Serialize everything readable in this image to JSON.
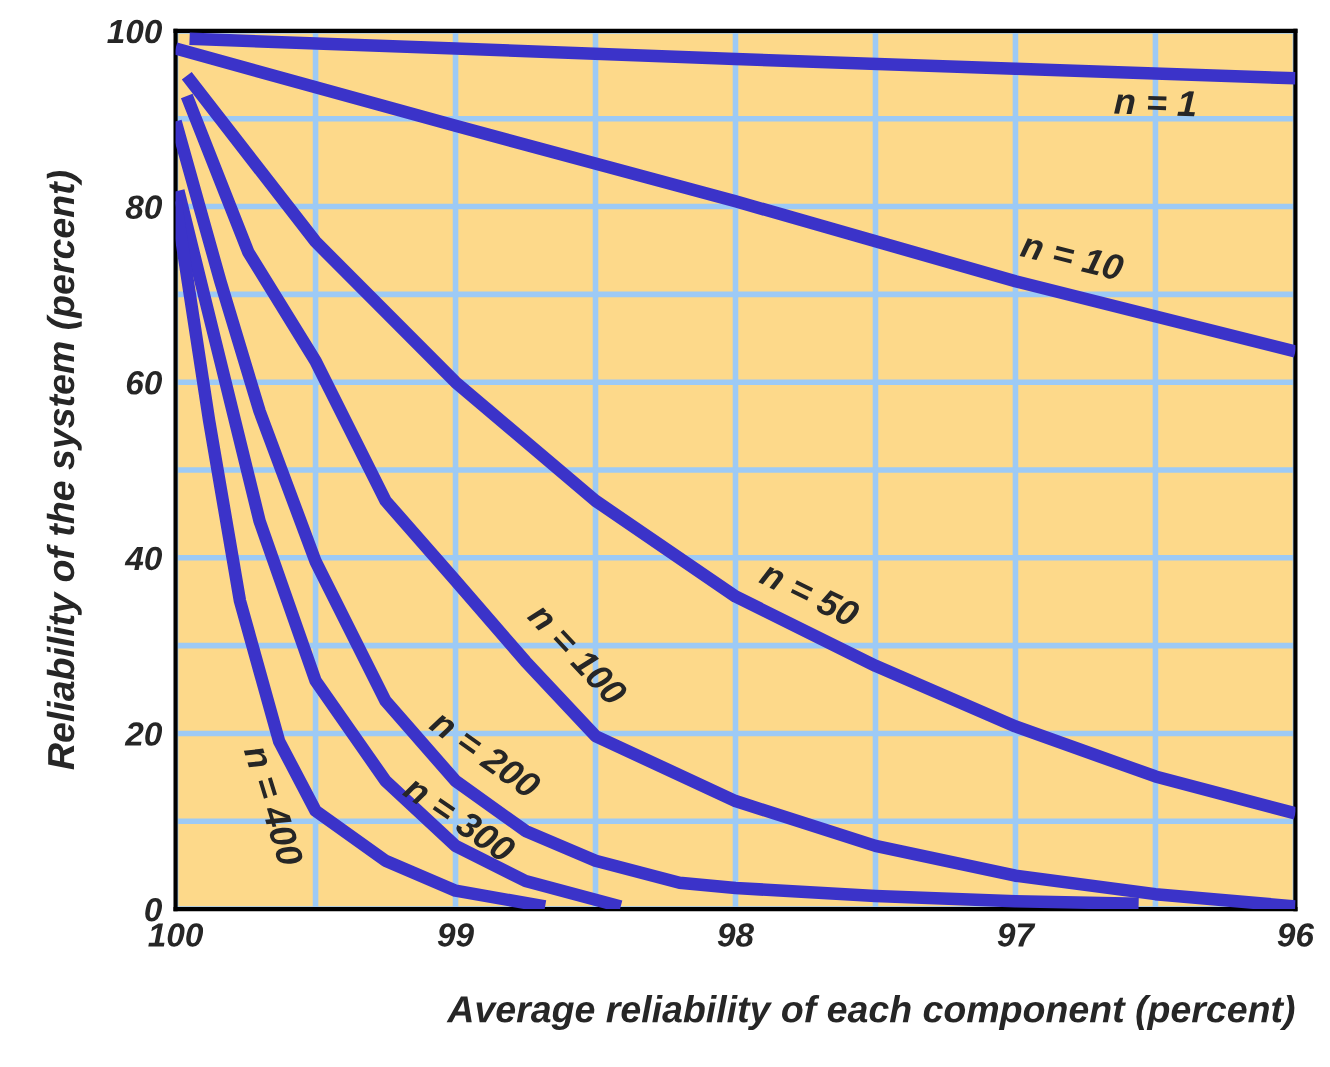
{
  "chart_data": {
    "type": "line",
    "xlabel": "Average reliability of each component (percent)",
    "ylabel": "Reliability of the system (percent)",
    "xlim": [
      100,
      96
    ],
    "ylim": [
      0,
      100
    ],
    "xticks": [
      100,
      {
        "value": 99.5,
        "label": null
      },
      99,
      {
        "value": 98.5,
        "label": null
      },
      98,
      {
        "value": 97.5,
        "label": null
      },
      97,
      {
        "value": 96.5,
        "label": null
      },
      96
    ],
    "yticks": [
      0,
      {
        "value": 10,
        "label": null
      },
      20,
      {
        "value": 30,
        "label": null
      },
      40,
      {
        "value": 50,
        "label": null
      },
      60,
      {
        "value": 70,
        "label": null
      },
      80,
      {
        "value": 90,
        "label": null
      },
      100
    ],
    "grid": true,
    "marker": "none",
    "line_style": "solid",
    "series": [
      {
        "name": "n = 1",
        "color": "#3b33c9",
        "x": [
          99.95,
          99,
          98,
          97,
          96
        ],
        "values": [
          99.1,
          98.0,
          96.8,
          95.7,
          94.6
        ]
      },
      {
        "name": "n = 10",
        "color": "#3b33c9",
        "x": [
          100,
          99,
          98,
          97,
          96
        ],
        "values": [
          98,
          89.2,
          80.6,
          71.5,
          63.5
        ]
      },
      {
        "name": "n = 50",
        "color": "#3b33c9",
        "x": [
          99.96,
          99.5,
          99,
          98.5,
          98,
          97.5,
          97,
          96.5,
          96
        ],
        "values": [
          94.9,
          76,
          60,
          46.5,
          35.6,
          27.7,
          20.8,
          15.1,
          10.9
        ]
      },
      {
        "name": "n = 100",
        "color": "#3b33c9",
        "x": [
          99.96,
          99.74,
          99.5,
          99.25,
          99,
          98.75,
          98.5,
          98,
          97.5,
          97,
          96.5,
          96
        ],
        "values": [
          92.6,
          74.8,
          62.4,
          46.5,
          37.4,
          28.2,
          19.7,
          12.3,
          7.2,
          3.8,
          1.7,
          0.3
        ]
      },
      {
        "name": "n = 200",
        "color": "#3b33c9",
        "x": [
          100,
          99.84,
          99.7,
          99.5,
          99.25,
          99,
          98.75,
          98.5,
          98.2,
          98,
          97.5,
          97,
          96.56
        ],
        "values": [
          89.7,
          71.5,
          56.7,
          39.6,
          23.7,
          14.6,
          8.9,
          5.5,
          3.0,
          2.4,
          1.5,
          0.9,
          0.6
        ]
      },
      {
        "name": "n = 300",
        "color": "#3b33c9",
        "x": [
          99.99,
          99.84,
          99.7,
          99.5,
          99.25,
          99,
          98.75,
          98.41
        ],
        "values": [
          81.8,
          62.4,
          44.2,
          26,
          14.6,
          7.2,
          3.2,
          0.3
        ]
      },
      {
        "name": "n = 400",
        "color": "#3b33c9",
        "x": [
          100,
          99.88,
          99.77,
          99.63,
          99.5,
          99.25,
          99,
          98.68
        ],
        "values": [
          80.6,
          55.6,
          35.1,
          19.1,
          11.2,
          5.5,
          2.1,
          0.3
        ]
      }
    ]
  }
}
